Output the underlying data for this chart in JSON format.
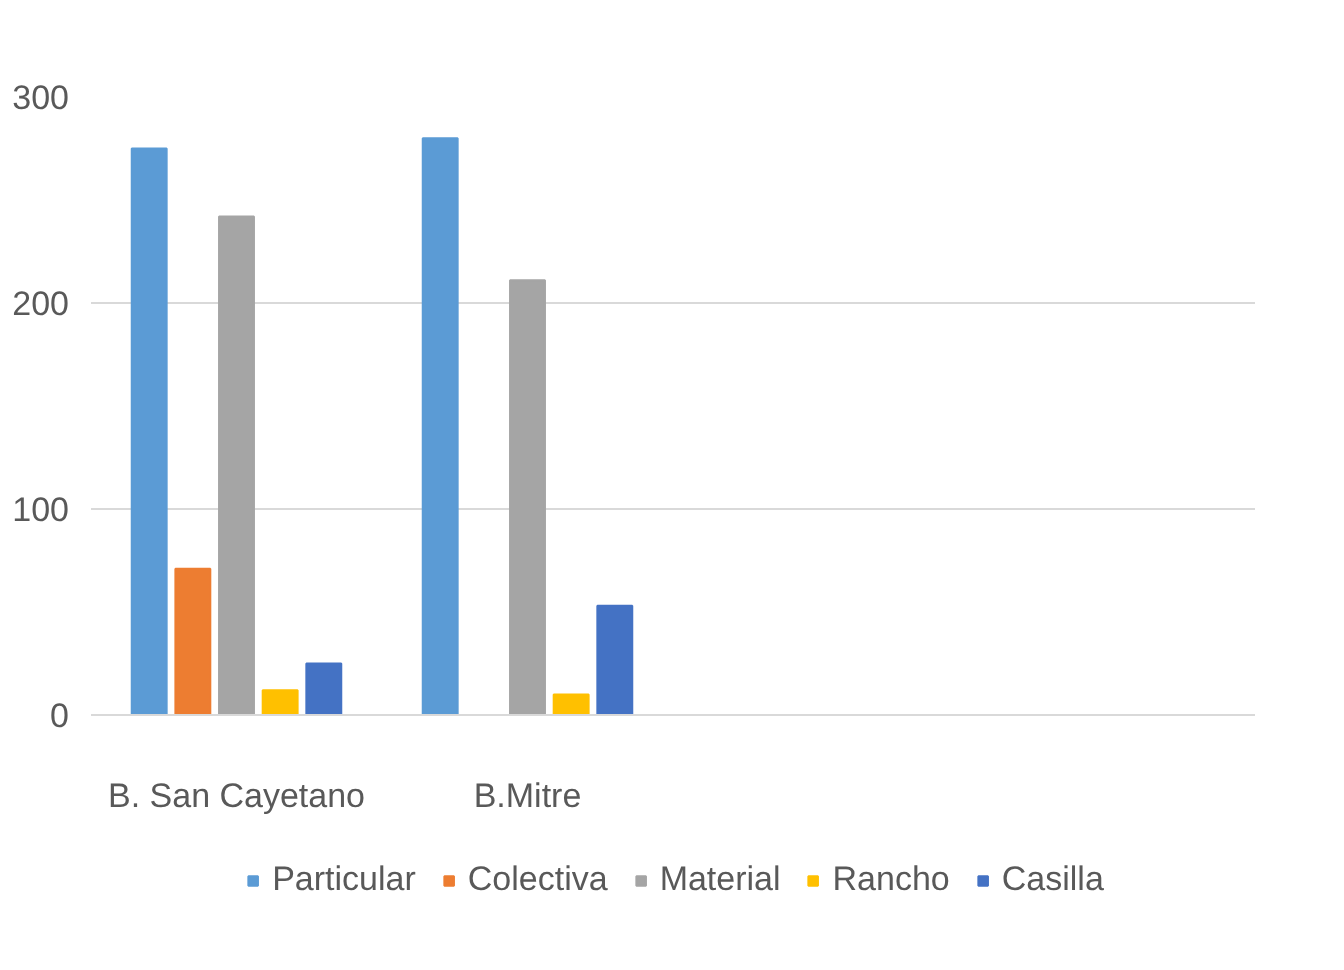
{
  "chart_data": {
    "type": "bar",
    "categories": [
      "B. San Cayetano",
      "B.Mitre",
      null,
      null
    ],
    "series": [
      {
        "name": "Particular",
        "color": "#5b9bd5",
        "values": [
          275,
          280,
          null,
          null
        ]
      },
      {
        "name": "Colectiva",
        "color": "#ed7d31",
        "values": [
          71,
          null,
          null,
          null
        ]
      },
      {
        "name": "Material",
        "color": "#a5a5a5",
        "values": [
          242,
          211,
          null,
          null
        ]
      },
      {
        "name": "Rancho",
        "color": "#ffc000",
        "values": [
          12,
          10,
          null,
          null
        ]
      },
      {
        "name": "Casilla",
        "color": "#4472c4",
        "values": [
          25,
          53,
          null,
          null
        ]
      }
    ],
    "ylim": [
      0,
      300
    ],
    "yticks": [
      0,
      100,
      200,
      300
    ],
    "grid": "y",
    "legend": "bottom"
  }
}
